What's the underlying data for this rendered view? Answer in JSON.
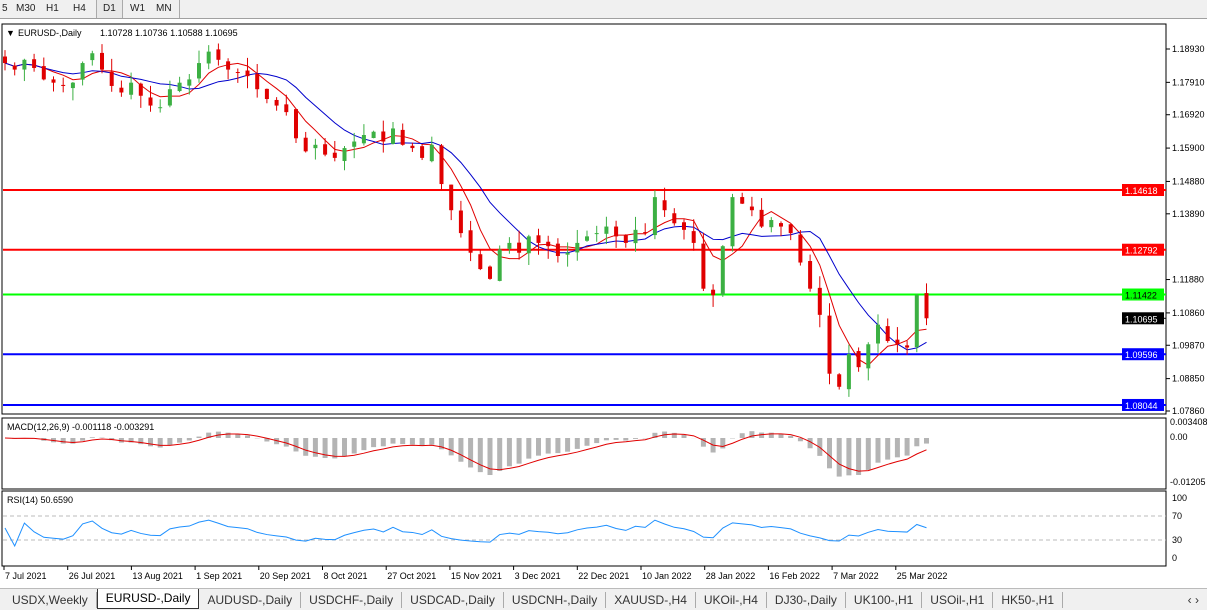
{
  "toolbar": {
    "timeframes": [
      "5",
      "M30",
      "H1",
      "H4",
      "D1",
      "W1",
      "MN"
    ],
    "active": "D1"
  },
  "chart": {
    "symbol_label": "EURUSD-,Daily",
    "ohlc": "1.10728 1.10736 1.10588 1.10695",
    "macd_label": "MACD(12,26,9) -0.001118 -0.003291",
    "rsi_label": "RSI(14) 50.6590"
  },
  "chart_data": {
    "type": "candlestick",
    "price_axis_ticks": [
      "1.18930",
      "1.17910",
      "1.16920",
      "1.15900",
      "1.14880",
      "1.13890",
      "1.11880",
      "1.10860",
      "1.09870",
      "1.08850",
      "1.07860"
    ],
    "ylim": [
      1.0786,
      1.1893
    ],
    "date_ticks": [
      "7 Jul 2021",
      "26 Jul 2021",
      "13 Aug 2021",
      "1 Sep 2021",
      "20 Sep 2021",
      "8 Oct 2021",
      "27 Oct 2021",
      "15 Nov 2021",
      "3 Dec 2021",
      "22 Dec 2021",
      "10 Jan 2022",
      "28 Jan 2022",
      "16 Feb 2022",
      "7 Mar 2022",
      "25 Mar 2022"
    ],
    "closes": [
      1.185,
      1.183,
      1.186,
      1.1835,
      1.18,
      1.179,
      1.178,
      1.179,
      1.185,
      1.188,
      1.183,
      1.178,
      1.176,
      1.179,
      1.175,
      1.172,
      1.1715,
      1.177,
      1.179,
      1.18,
      1.185,
      1.1885,
      1.186,
      1.183,
      1.182,
      1.181,
      1.177,
      1.174,
      1.172,
      1.17,
      1.162,
      1.158,
      1.16,
      1.157,
      1.156,
      1.159,
      1.161,
      1.163,
      1.164,
      1.161,
      1.165,
      1.16,
      1.159,
      1.156,
      1.16,
      1.148,
      1.14,
      1.133,
      1.127,
      1.122,
      1.119,
      1.128,
      1.13,
      1.127,
      1.132,
      1.13,
      1.129,
      1.126,
      1.127,
      1.13,
      1.132,
      1.133,
      1.135,
      1.132,
      1.13,
      1.134,
      1.133,
      1.144,
      1.14,
      1.136,
      1.134,
      1.13,
      1.116,
      1.114,
      1.129,
      1.144,
      1.142,
      1.14,
      1.135,
      1.137,
      1.135,
      1.133,
      1.124,
      1.116,
      1.108,
      1.09,
      1.086,
      1.096,
      1.092,
      1.099,
      1.105,
      1.1,
      1.099,
      1.098,
      1.114,
      1.10695
    ],
    "horizontal_lines": [
      {
        "price": "1.14618",
        "color": "#ff0000"
      },
      {
        "price": "1.12792",
        "color": "#ff0000"
      },
      {
        "price": "1.11422",
        "color": "#00ff00"
      },
      {
        "price": "1.09596",
        "color": "#0000ff"
      },
      {
        "price": "1.08044",
        "color": "#0000ff"
      }
    ],
    "current_price": "1.10695",
    "macd_ticks": [
      "0.003408",
      "0.00",
      "-0.01205"
    ],
    "rsi_ticks": [
      "100",
      "70",
      "30",
      "0"
    ],
    "colors": {
      "bull": "#3cb043",
      "bear": "#e00000",
      "ma_fast": "#e00000",
      "ma_slow": "#0000cc",
      "rsi": "#1e90ff",
      "macd_hist": "#b4b4b4"
    }
  },
  "tabs": [
    "USDX,Weekly",
    "EURUSD-,Daily",
    "AUDUSD-,Daily",
    "USDCHF-,Daily",
    "USDCAD-,Daily",
    "USDCNH-,Daily",
    "XAUUSD-,H4",
    "UKOil-,H4",
    "DJ30-,Daily",
    "UK100-,H1",
    "USOil-,H1",
    "HK50-,H1"
  ],
  "active_tab": "EURUSD-,Daily"
}
